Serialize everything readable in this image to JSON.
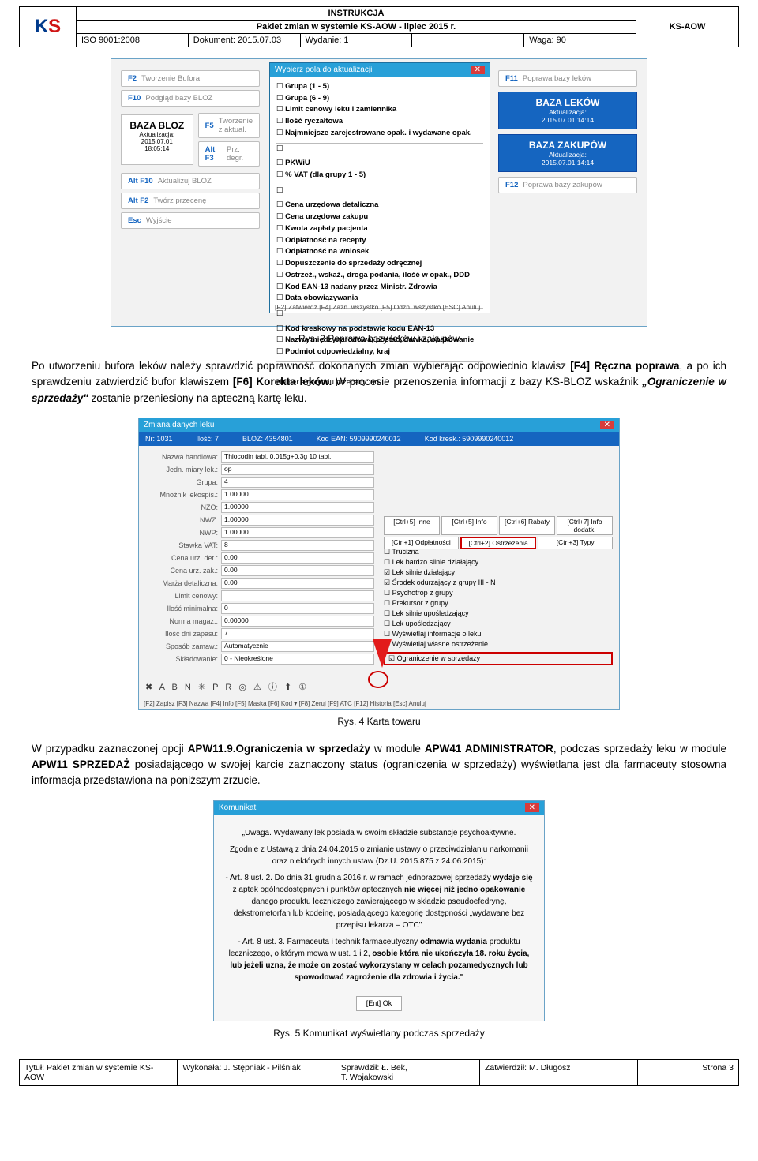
{
  "header": {
    "logo_top": "K",
    "logo_top_red": "S",
    "title_top": "INSTRUKCJA",
    "title_mid": "Pakiet zmian w systemie KS-AOW - lipiec 2015 r.",
    "iso": "ISO 9001:2008",
    "dokument": "Dokument: 2015.07.03",
    "wydanie": "Wydanie: 1",
    "waga": "Waga: 90",
    "ks_aow": "KS-AOW"
  },
  "shot1": {
    "dialog_title": "Wybierz pola do aktualizacji",
    "checks_a": [
      "Grupa (1 - 5)",
      "Grupa (6 - 9)",
      "Limit cenowy leku i zamiennika",
      "Ilość ryczałtowa",
      "Najmniejsze zarejestrowane opak. i wydawane opak."
    ],
    "checks_b": [
      "PKWiU",
      "% VAT (dla grupy 1 - 5)"
    ],
    "checks_c": [
      "Cena urzędowa detaliczna",
      "Cena urzędowa zakupu",
      "Kwota zapłaty pacjenta",
      "Odpłatność na recepty",
      "Odpłatność na wniosek",
      "Dopuszczenie do sprzedaży odręcznej",
      "Ostrzeż., wskaż., droga podania, ilość w opak., DDD",
      "Kod EAN-13 nadany przez Ministr. Zdrowia",
      "Data obowiązywania"
    ],
    "checks_d": [
      "Kod kreskowy na podstawie kodu EAN-13",
      "Nazwa międzynarodowa, postać, dawka, opakowanie",
      "Podmiot odpowiedzialny, kraj"
    ],
    "numer": "Numer algorytmu przeceny: nd.",
    "footer_keys": "[F2] Zatwierdź   [F4] Zazn. wszystko   [F5] Odzn. wszystko   [ESC] Anuluj",
    "left": {
      "f2": "F2",
      "f2_lbl": "Tworzenie Bufora",
      "f10": "F10",
      "f10_lbl": "Podgląd bazy BLOZ",
      "bloz_head": "BAZA BLOZ",
      "bloz_date": "Aktualizacja:\n2015.07.01\n18:05:14",
      "f5": "F5",
      "f5_lbl": "Tworzenie z aktual.",
      "altf3": "Alt F3",
      "altf3_lbl": "Prz. degr.",
      "altf10": "Alt F10",
      "altf10_lbl": "Aktualizuj BLOZ",
      "altf2": "Alt F2",
      "altf2_lbl": "Twórz przecenę",
      "esc": "Esc",
      "esc_lbl": "Wyjście"
    },
    "right": {
      "f11": "F11",
      "f11_lbl": "Poprawa bazy leków",
      "tile1_head": "BAZA LEKÓW",
      "tile1_sub": "Aktualizacja:\n2015.07.01 14:14",
      "tile2_head": "BAZA ZAKUPÓW",
      "tile2_sub": "Aktualizacja:\n2015.07.01 14:14",
      "f12": "F12",
      "f12_lbl": "Poprawa bazy zakupów"
    }
  },
  "caption1": "Rys. 3 Poprawa bazy leków i zakupów",
  "para1_a": "Po utworzeniu bufora leków należy sprawdzić poprawność dokonanych zmian wybierając odpowiednio klawisz ",
  "para1_b": "[F4] Ręczna poprawa",
  "para1_c": ", a po ich sprawdzeniu zatwierdzić bufor klawiszem ",
  "para1_d": "[F6] Korekta leków.",
  "para1_e": " W procesie przenoszenia informacji z bazy KS-BLOZ wskaźnik ",
  "para1_f": "„Ograniczenie w sprzedaży\"",
  "para1_g": " zostanie przeniesiony na apteczną kartę leku.",
  "shot2": {
    "title": "Zmiana danych leku",
    "hdr_nr": "Nr: 1031",
    "hdr_ilosc": "Ilość: 7",
    "hdr_bloz": "BLOZ: 4354801",
    "hdr_ean": "Kod EAN: 5909990240012",
    "hdr_kresk": "Kod kresk.: 5909990240012",
    "rows_left": [
      [
        "Nazwa handlowa:",
        "Thiocodin tabl. 0,015g+0,3g 10 tabl."
      ],
      [
        "Jedn. miary lek.:",
        "op"
      ],
      [
        "Grupa:",
        "4"
      ],
      [
        "Mnożnik lekospis.:",
        "1.00000"
      ],
      [
        "NZO:",
        "1.00000"
      ],
      [
        "NWZ:",
        "1.00000"
      ],
      [
        "NWP:",
        "1.00000"
      ],
      [
        "Stawka VAT:",
        "8"
      ],
      [
        "Cena urz. det.:",
        "0.00"
      ],
      [
        "Cena urz. zak.:",
        "0.00"
      ],
      [
        "Marża detaliczna:",
        "0.00"
      ],
      [
        "Limit cenowy:",
        ""
      ],
      [
        "Ilość minimalna:",
        "0"
      ],
      [
        "Norma magaz.:",
        "0.00000"
      ],
      [
        "Ilość dni zapasu:",
        "7"
      ],
      [
        "Sposób zamaw.:",
        "Automatycznie"
      ],
      [
        "Składowanie:",
        "0 - Nieokreślone"
      ]
    ],
    "tabs_top": [
      "[Ctrl+5] Inne",
      "[Ctrl+5] Info",
      "[Ctrl+6] Rabaty",
      "[Ctrl+7] Info dodatk."
    ],
    "tabs_bot": [
      "[Ctrl+1] Odpłatności",
      "[Ctrl+2] Ostrzeżenia",
      "[Ctrl+3] Typy"
    ],
    "checks": [
      "☐ Trucizna",
      "☐ Lek bardzo silnie działający",
      "☑ Lek silnie działający",
      "☑ Środek odurzający z grupy   III - N",
      "☐ Psychotrop z grupy",
      "☐ Prekursor z grupy",
      "☐ Lek silnie upośledzający",
      "☐ Lek upośledzający",
      "☐ Wyświetlaj informacje o leku",
      "☐ Wyświetlaj własne ostrzeżenie"
    ],
    "red_check": "☑ Ograniczenie w sprzedaży",
    "icons": "✖ A B N ✳ P R ◎ ⚠ ⓘ ⬆ ①",
    "footer": "[F2] Zapisz  [F3] Nazwa  [F4] Info  [F5] Maska  [F6] Kod ▾  [F8] Zeruj  [F9] ATC  [F12] Historia  [Esc] Anuluj"
  },
  "caption2": "Rys. 4 Karta towaru",
  "para2_a": "W przypadku zaznaczonej opcji ",
  "para2_b": "APW11.9.Ograniczenia w sprzedaży",
  "para2_c": " w module ",
  "para2_d": "APW41 ADMINISTRATOR",
  "para2_e": ", podczas sprzedaży leku w module ",
  "para2_f": "APW11 SPRZEDAŻ",
  "para2_g": " posiadającego w swojej karcie zaznaczony status (ograniczenia w sprzedaży) wyświetlana jest dla farmaceuty stosowna informacja przedstawiona na poniższym zrzucie.",
  "shot3": {
    "title": "Komunikat",
    "l1": "„Uwaga. Wydawany lek posiada w swoim składzie substancje psychoaktywne.",
    "l2": "Zgodnie z Ustawą z dnia 24.04.2015 o zmianie ustawy o przeciwdziałaniu narkomanii oraz niektórych innych ustaw (Dz.U. 2015.875 z 24.06.2015):",
    "l3a": "- Art. 8 ust. 2. Do dnia 31 grudnia 2016 r. w ramach jednorazowej sprzedaży ",
    "l3b": "wydaje się",
    "l3c": " z aptek ogólnodostępnych i punktów aptecznych ",
    "l3d": "nie więcej niż jedno opakowanie",
    "l3e": " danego produktu leczniczego zawierającego w składzie pseudoefedrynę, dekstrometorfan lub kodeinę, posiadającego kategorię dostępności „wydawane bez przepisu lekarza – OTC\"",
    "l4a": "- Art. 8 ust. 3. Farmaceuta i technik farmaceutyczny ",
    "l4b": "odmawia wydania",
    "l4c": " produktu leczniczego, o którym mowa w ust. 1 i 2, ",
    "l4d": "osobie która nie ukończyła 18. roku życia, lub jeżeli uzna, że może on zostać wykorzystany w celach pozamedycznych lub spowodować zagrożenie dla zdrowia i życia.\"",
    "btn": "[Ent] Ok"
  },
  "caption3": "Rys. 5 Komunikat wyświetlany podczas sprzedaży",
  "footer": {
    "c1a": "Tytuł:",
    "c1b": "Pakiet zmian w systemie KS-AOW",
    "c2": "Wykonała: J. Stępniak - Pilśniak",
    "c3a": "Sprawdził: Ł. Bek,",
    "c3b": "T. Wojakowski",
    "c4": "Zatwierdził: M. Długosz",
    "c5": "Strona 3"
  }
}
